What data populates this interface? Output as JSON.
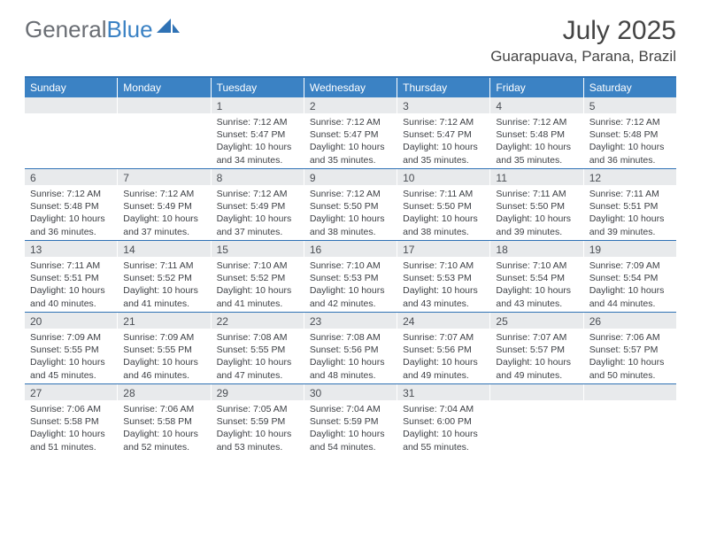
{
  "logo": {
    "part1": "General",
    "part2": "Blue"
  },
  "title": "July 2025",
  "location": "Guarapuava, Parana, Brazil",
  "colors": {
    "header_bg": "#3b82c4",
    "header_text": "#ffffff",
    "daynum_bg": "#e8eaec",
    "body_text": "#3c3f44",
    "rule": "#2f72b5",
    "logo_grey": "#6a6e74",
    "logo_blue": "#3b82c4"
  },
  "day_headers": [
    "Sunday",
    "Monday",
    "Tuesday",
    "Wednesday",
    "Thursday",
    "Friday",
    "Saturday"
  ],
  "weeks": [
    [
      {
        "n": "",
        "lines": []
      },
      {
        "n": "",
        "lines": []
      },
      {
        "n": "1",
        "lines": [
          "Sunrise: 7:12 AM",
          "Sunset: 5:47 PM",
          "Daylight: 10 hours and 34 minutes."
        ]
      },
      {
        "n": "2",
        "lines": [
          "Sunrise: 7:12 AM",
          "Sunset: 5:47 PM",
          "Daylight: 10 hours and 35 minutes."
        ]
      },
      {
        "n": "3",
        "lines": [
          "Sunrise: 7:12 AM",
          "Sunset: 5:47 PM",
          "Daylight: 10 hours and 35 minutes."
        ]
      },
      {
        "n": "4",
        "lines": [
          "Sunrise: 7:12 AM",
          "Sunset: 5:48 PM",
          "Daylight: 10 hours and 35 minutes."
        ]
      },
      {
        "n": "5",
        "lines": [
          "Sunrise: 7:12 AM",
          "Sunset: 5:48 PM",
          "Daylight: 10 hours and 36 minutes."
        ]
      }
    ],
    [
      {
        "n": "6",
        "lines": [
          "Sunrise: 7:12 AM",
          "Sunset: 5:48 PM",
          "Daylight: 10 hours and 36 minutes."
        ]
      },
      {
        "n": "7",
        "lines": [
          "Sunrise: 7:12 AM",
          "Sunset: 5:49 PM",
          "Daylight: 10 hours and 37 minutes."
        ]
      },
      {
        "n": "8",
        "lines": [
          "Sunrise: 7:12 AM",
          "Sunset: 5:49 PM",
          "Daylight: 10 hours and 37 minutes."
        ]
      },
      {
        "n": "9",
        "lines": [
          "Sunrise: 7:12 AM",
          "Sunset: 5:50 PM",
          "Daylight: 10 hours and 38 minutes."
        ]
      },
      {
        "n": "10",
        "lines": [
          "Sunrise: 7:11 AM",
          "Sunset: 5:50 PM",
          "Daylight: 10 hours and 38 minutes."
        ]
      },
      {
        "n": "11",
        "lines": [
          "Sunrise: 7:11 AM",
          "Sunset: 5:50 PM",
          "Daylight: 10 hours and 39 minutes."
        ]
      },
      {
        "n": "12",
        "lines": [
          "Sunrise: 7:11 AM",
          "Sunset: 5:51 PM",
          "Daylight: 10 hours and 39 minutes."
        ]
      }
    ],
    [
      {
        "n": "13",
        "lines": [
          "Sunrise: 7:11 AM",
          "Sunset: 5:51 PM",
          "Daylight: 10 hours and 40 minutes."
        ]
      },
      {
        "n": "14",
        "lines": [
          "Sunrise: 7:11 AM",
          "Sunset: 5:52 PM",
          "Daylight: 10 hours and 41 minutes."
        ]
      },
      {
        "n": "15",
        "lines": [
          "Sunrise: 7:10 AM",
          "Sunset: 5:52 PM",
          "Daylight: 10 hours and 41 minutes."
        ]
      },
      {
        "n": "16",
        "lines": [
          "Sunrise: 7:10 AM",
          "Sunset: 5:53 PM",
          "Daylight: 10 hours and 42 minutes."
        ]
      },
      {
        "n": "17",
        "lines": [
          "Sunrise: 7:10 AM",
          "Sunset: 5:53 PM",
          "Daylight: 10 hours and 43 minutes."
        ]
      },
      {
        "n": "18",
        "lines": [
          "Sunrise: 7:10 AM",
          "Sunset: 5:54 PM",
          "Daylight: 10 hours and 43 minutes."
        ]
      },
      {
        "n": "19",
        "lines": [
          "Sunrise: 7:09 AM",
          "Sunset: 5:54 PM",
          "Daylight: 10 hours and 44 minutes."
        ]
      }
    ],
    [
      {
        "n": "20",
        "lines": [
          "Sunrise: 7:09 AM",
          "Sunset: 5:55 PM",
          "Daylight: 10 hours and 45 minutes."
        ]
      },
      {
        "n": "21",
        "lines": [
          "Sunrise: 7:09 AM",
          "Sunset: 5:55 PM",
          "Daylight: 10 hours and 46 minutes."
        ]
      },
      {
        "n": "22",
        "lines": [
          "Sunrise: 7:08 AM",
          "Sunset: 5:55 PM",
          "Daylight: 10 hours and 47 minutes."
        ]
      },
      {
        "n": "23",
        "lines": [
          "Sunrise: 7:08 AM",
          "Sunset: 5:56 PM",
          "Daylight: 10 hours and 48 minutes."
        ]
      },
      {
        "n": "24",
        "lines": [
          "Sunrise: 7:07 AM",
          "Sunset: 5:56 PM",
          "Daylight: 10 hours and 49 minutes."
        ]
      },
      {
        "n": "25",
        "lines": [
          "Sunrise: 7:07 AM",
          "Sunset: 5:57 PM",
          "Daylight: 10 hours and 49 minutes."
        ]
      },
      {
        "n": "26",
        "lines": [
          "Sunrise: 7:06 AM",
          "Sunset: 5:57 PM",
          "Daylight: 10 hours and 50 minutes."
        ]
      }
    ],
    [
      {
        "n": "27",
        "lines": [
          "Sunrise: 7:06 AM",
          "Sunset: 5:58 PM",
          "Daylight: 10 hours and 51 minutes."
        ]
      },
      {
        "n": "28",
        "lines": [
          "Sunrise: 7:06 AM",
          "Sunset: 5:58 PM",
          "Daylight: 10 hours and 52 minutes."
        ]
      },
      {
        "n": "29",
        "lines": [
          "Sunrise: 7:05 AM",
          "Sunset: 5:59 PM",
          "Daylight: 10 hours and 53 minutes."
        ]
      },
      {
        "n": "30",
        "lines": [
          "Sunrise: 7:04 AM",
          "Sunset: 5:59 PM",
          "Daylight: 10 hours and 54 minutes."
        ]
      },
      {
        "n": "31",
        "lines": [
          "Sunrise: 7:04 AM",
          "Sunset: 6:00 PM",
          "Daylight: 10 hours and 55 minutes."
        ]
      },
      {
        "n": "",
        "lines": []
      },
      {
        "n": "",
        "lines": []
      }
    ]
  ]
}
